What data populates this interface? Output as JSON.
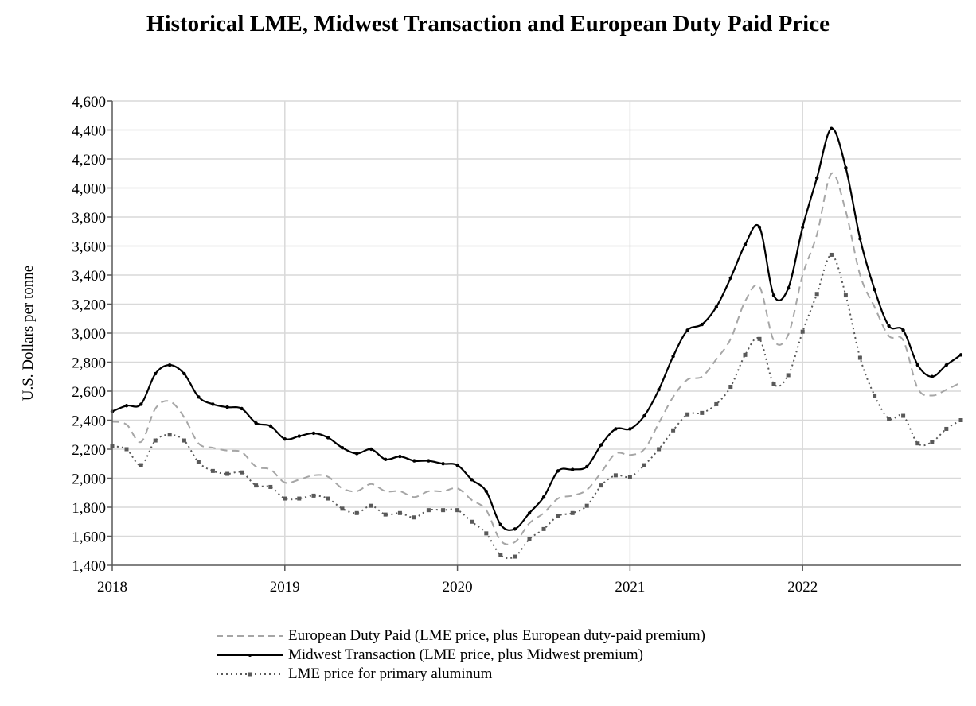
{
  "chart_data": {
    "type": "line",
    "title": "Historical LME, Midwest Transaction and European Duty Paid Price",
    "xlabel": "",
    "ylabel": "U.S. Dollars per tonne",
    "xlim": [
      2018.0,
      2022.917
    ],
    "ylim": [
      1400,
      4600
    ],
    "yticks": [
      1400,
      1600,
      1800,
      2000,
      2200,
      2400,
      2600,
      2800,
      3000,
      3200,
      3400,
      3600,
      3800,
      4000,
      4200,
      4400,
      4600
    ],
    "ytick_labels": [
      "1,400",
      "1,600",
      "1,800",
      "2,000",
      "2,200",
      "2,400",
      "2,600",
      "2,800",
      "3,000",
      "3,200",
      "3,400",
      "3,600",
      "3,800",
      "4,000",
      "4,200",
      "4,400",
      "4,600"
    ],
    "xticks": [
      2018,
      2019,
      2020,
      2021,
      2022
    ],
    "xtick_labels": [
      "2018",
      "2019",
      "2020",
      "2021",
      "2022"
    ],
    "grid": true,
    "legend_position": "bottom-center",
    "x": [
      2018.0,
      2018.083,
      2018.167,
      2018.25,
      2018.333,
      2018.417,
      2018.5,
      2018.583,
      2018.667,
      2018.75,
      2018.833,
      2018.917,
      2019.0,
      2019.083,
      2019.167,
      2019.25,
      2019.333,
      2019.417,
      2019.5,
      2019.583,
      2019.667,
      2019.75,
      2019.833,
      2019.917,
      2020.0,
      2020.083,
      2020.167,
      2020.25,
      2020.333,
      2020.417,
      2020.5,
      2020.583,
      2020.667,
      2020.75,
      2020.833,
      2020.917,
      2021.0,
      2021.083,
      2021.167,
      2021.25,
      2021.333,
      2021.417,
      2021.5,
      2021.583,
      2021.667,
      2021.75,
      2021.833,
      2021.917,
      2022.0,
      2022.083,
      2022.167,
      2022.25,
      2022.333,
      2022.417,
      2022.5,
      2022.583,
      2022.667,
      2022.75,
      2022.833,
      2022.917
    ],
    "series": [
      {
        "name": "European Duty Paid (LME price, plus European duty-paid premium)",
        "style": "dashed",
        "color": "#a6a6a6",
        "marker": "none",
        "values": [
          2390,
          2370,
          2250,
          2480,
          2530,
          2420,
          2240,
          2210,
          2190,
          2180,
          2080,
          2060,
          1970,
          1990,
          2020,
          2010,
          1930,
          1910,
          1960,
          1910,
          1910,
          1870,
          1910,
          1910,
          1930,
          1850,
          1780,
          1570,
          1560,
          1690,
          1760,
          1860,
          1880,
          1920,
          2040,
          2170,
          2160,
          2200,
          2380,
          2560,
          2680,
          2700,
          2820,
          2960,
          3220,
          3320,
          2950,
          2990,
          3400,
          3680,
          4100,
          3840,
          3400,
          3180,
          2980,
          2950,
          2620,
          2570,
          2610,
          2660
        ]
      },
      {
        "name": "Midwest Transaction (LME price, plus Midwest premium)",
        "style": "solid",
        "color": "#000000",
        "marker": "dot",
        "values": [
          2460,
          2500,
          2510,
          2720,
          2780,
          2720,
          2560,
          2510,
          2490,
          2480,
          2380,
          2360,
          2270,
          2290,
          2310,
          2280,
          2210,
          2170,
          2200,
          2130,
          2150,
          2120,
          2120,
          2100,
          2090,
          1990,
          1910,
          1680,
          1650,
          1760,
          1870,
          2050,
          2060,
          2080,
          2230,
          2340,
          2340,
          2430,
          2610,
          2840,
          3020,
          3060,
          3180,
          3380,
          3610,
          3730,
          3260,
          3310,
          3730,
          4070,
          4410,
          4140,
          3650,
          3300,
          3050,
          3020,
          2780,
          2700,
          2780,
          2850
        ]
      },
      {
        "name": "LME price for primary aluminum",
        "style": "dotted",
        "color": "#595959",
        "marker": "square",
        "values": [
          2220,
          2200,
          2090,
          2260,
          2300,
          2260,
          2110,
          2050,
          2030,
          2040,
          1950,
          1940,
          1860,
          1860,
          1880,
          1860,
          1790,
          1760,
          1810,
          1750,
          1760,
          1730,
          1780,
          1780,
          1780,
          1700,
          1620,
          1470,
          1460,
          1580,
          1650,
          1740,
          1760,
          1810,
          1950,
          2020,
          2010,
          2090,
          2200,
          2330,
          2440,
          2450,
          2510,
          2630,
          2850,
          2960,
          2650,
          2710,
          3010,
          3270,
          3540,
          3260,
          2830,
          2570,
          2410,
          2430,
          2240,
          2250,
          2340,
          2400
        ]
      }
    ]
  }
}
